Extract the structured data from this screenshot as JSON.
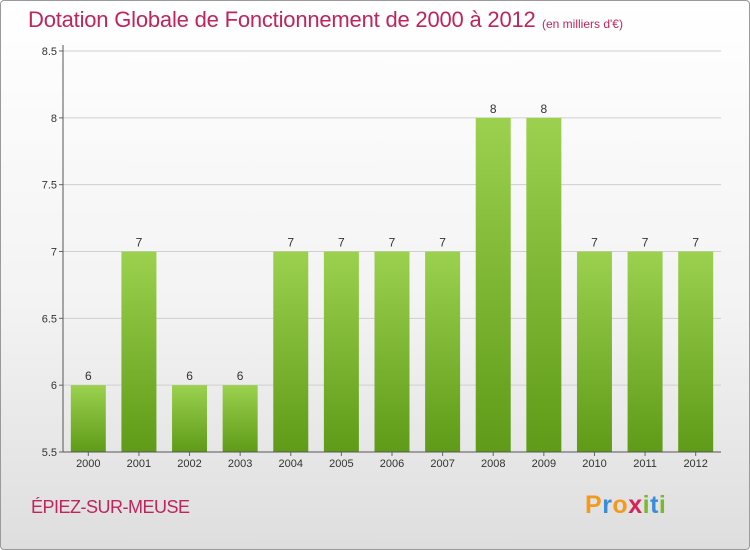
{
  "header": {
    "title": "Dotation Globale de Fonctionnement de 2000 à 2012",
    "unit": "(en milliers d'€)"
  },
  "footer": {
    "commune": "ÉPIEZ-SUR-MEUSE",
    "logo_letters": [
      "P",
      "r",
      "o",
      "x",
      "i",
      "t",
      "i"
    ],
    "logo_colors": [
      "#f39a1d",
      "#3a8ed8",
      "#f39a1d",
      "#d6245a",
      "#7cb82f",
      "#3a8ed8",
      "#7cb82f"
    ]
  },
  "colors": {
    "title": "#c0245c",
    "bar_top": "#9bd14f",
    "bar_bottom": "#5f9b18",
    "grid": "#cfcfcf"
  },
  "chart_data": {
    "type": "bar",
    "categories": [
      "2000",
      "2001",
      "2002",
      "2003",
      "2004",
      "2005",
      "2006",
      "2007",
      "2008",
      "2009",
      "2010",
      "2011",
      "2012"
    ],
    "values": [
      6,
      7,
      6,
      6,
      7,
      7,
      7,
      7,
      8,
      8,
      7,
      7,
      7
    ],
    "value_labels": [
      "6",
      "7",
      "6",
      "6",
      "7",
      "7",
      "7",
      "7",
      "8",
      "8",
      "7",
      "7",
      "7"
    ],
    "title": "Dotation Globale de Fonctionnement de 2000 à 2012",
    "xlabel": "",
    "ylabel": "",
    "ylim": [
      5.5,
      8.5
    ],
    "yticks": [
      "5.5",
      "6",
      "6.5",
      "7",
      "7.5",
      "8",
      "8.5"
    ],
    "grid": true
  }
}
